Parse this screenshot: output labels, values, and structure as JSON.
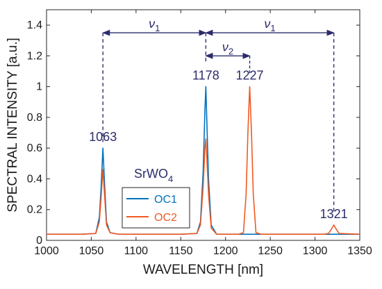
{
  "chart_data": {
    "type": "line",
    "xlabel": "WAVELENGTH [nm]",
    "ylabel": "SPECTRAL INTENSITY [a.u.]",
    "xlim": [
      1000,
      1350
    ],
    "ylim": [
      0,
      1.5
    ],
    "xticks": [
      1000,
      1050,
      1100,
      1150,
      1200,
      1250,
      1300,
      1350
    ],
    "yticks": [
      0,
      0.2,
      0.4,
      0.6,
      0.8,
      1,
      1.2,
      1.4
    ],
    "xtick_labels": [
      "1000",
      "1050",
      "1100",
      "1150",
      "1200",
      "1250",
      "1300",
      "1350"
    ],
    "ytick_labels": [
      "0",
      "0.2",
      "0.4",
      "0.6",
      "0.8",
      "1",
      "1.2",
      "1.4"
    ],
    "grid": false,
    "legend_position": "lower-left",
    "legend_title": "SrWO",
    "legend_title_sub": "4",
    "series": [
      {
        "name": "OC1",
        "color": "#0072BD",
        "x": [
          1000,
          1040,
          1055,
          1059,
          1061,
          1063,
          1065,
          1067,
          1071,
          1080,
          1150,
          1168,
          1172,
          1175,
          1177,
          1178,
          1179,
          1181,
          1184,
          1190,
          1350
        ],
        "y": [
          0.04,
          0.04,
          0.045,
          0.15,
          0.35,
          0.6,
          0.35,
          0.12,
          0.05,
          0.04,
          0.04,
          0.045,
          0.12,
          0.45,
          0.85,
          1.0,
          0.8,
          0.4,
          0.1,
          0.04,
          0.04
        ]
      },
      {
        "name": "OC2",
        "color": "#F05A22",
        "x": [
          1000,
          1040,
          1055,
          1059,
          1061,
          1063,
          1065,
          1067,
          1071,
          1080,
          1150,
          1168,
          1172,
          1175,
          1177,
          1178,
          1179,
          1181,
          1184,
          1190,
          1215,
          1220,
          1223,
          1225,
          1227,
          1229,
          1231,
          1234,
          1240,
          1310,
          1315,
          1318,
          1321,
          1324,
          1327,
          1350
        ],
        "y": [
          0.04,
          0.04,
          0.045,
          0.12,
          0.28,
          0.46,
          0.28,
          0.1,
          0.05,
          0.04,
          0.04,
          0.045,
          0.1,
          0.35,
          0.6,
          0.66,
          0.55,
          0.3,
          0.08,
          0.04,
          0.04,
          0.05,
          0.3,
          0.7,
          1.0,
          0.7,
          0.3,
          0.05,
          0.04,
          0.04,
          0.045,
          0.07,
          0.1,
          0.07,
          0.045,
          0.04
        ]
      }
    ],
    "peak_labels": [
      {
        "text": "1063",
        "x": 1063,
        "y": 0.6
      },
      {
        "text": "1178",
        "x": 1178,
        "y": 1.0
      },
      {
        "text": "1227",
        "x": 1227,
        "y": 1.0
      },
      {
        "text": "1321",
        "x": 1321,
        "y": 0.1
      }
    ],
    "spacing_annotations": [
      {
        "symbol": "ν",
        "subscript": "1",
        "x_from": 1063,
        "x_to": 1178,
        "y": 1.35
      },
      {
        "symbol": "ν",
        "subscript": "1",
        "x_from": 1178,
        "x_to": 1321,
        "y": 1.35
      },
      {
        "symbol": "ν",
        "subscript": "2",
        "x_from": 1178,
        "x_to": 1227,
        "y": 1.2
      }
    ],
    "annotation_color": "#2B2C6B"
  }
}
